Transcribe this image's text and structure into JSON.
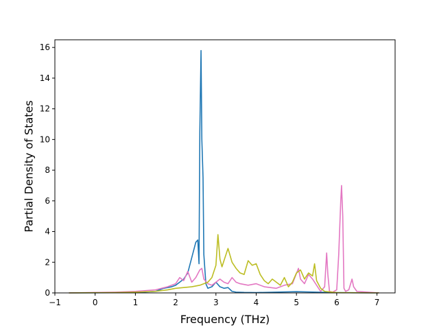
{
  "chart_data": {
    "type": "line",
    "title": "",
    "xlabel": "Frequency (THz)",
    "ylabel": "Partial Density of States",
    "xlim": [
      -1.0,
      7.45
    ],
    "ylim": [
      0,
      16.5
    ],
    "xticks": [
      -1,
      0,
      1,
      2,
      3,
      4,
      5,
      6,
      7
    ],
    "yticks": [
      0,
      2,
      4,
      6,
      8,
      10,
      12,
      14,
      16
    ],
    "grid": false,
    "legend": "none",
    "colors": [
      "#1f77b4",
      "#e377c2",
      "#bcbd22"
    ],
    "series": [
      {
        "color": "#1f77b4",
        "x": [
          -0.65,
          1.0,
          1.5,
          1.7,
          1.9,
          2.0,
          2.1,
          2.2,
          2.3,
          2.4,
          2.5,
          2.55,
          2.58,
          2.6,
          2.63,
          2.65,
          2.68,
          2.7,
          2.75,
          2.8,
          2.9,
          3.0,
          3.1,
          3.2,
          3.3,
          3.4,
          3.5,
          3.7,
          4.0,
          5.0,
          5.5,
          6.0,
          7.05
        ],
        "y": [
          0,
          0.02,
          0.1,
          0.3,
          0.4,
          0.5,
          0.7,
          0.9,
          1.3,
          2.3,
          3.3,
          3.45,
          1.9,
          10.5,
          15.8,
          10.0,
          7.5,
          2.5,
          0.6,
          0.3,
          0.4,
          0.7,
          0.4,
          0.3,
          0.35,
          0.1,
          0.05,
          0.03,
          0.02,
          0.08,
          0.05,
          0.02,
          0
        ]
      },
      {
        "color": "#e377c2",
        "x": [
          -0.65,
          0.5,
          1.0,
          1.5,
          1.8,
          2.0,
          2.1,
          2.2,
          2.3,
          2.4,
          2.5,
          2.6,
          2.65,
          2.7,
          2.8,
          2.9,
          3.0,
          3.1,
          3.2,
          3.3,
          3.4,
          3.5,
          3.6,
          3.8,
          4.0,
          4.2,
          4.5,
          4.7,
          4.9,
          5.05,
          5.1,
          5.2,
          5.3,
          5.4,
          5.5,
          5.6,
          5.7,
          5.75,
          5.78,
          5.82,
          5.9,
          6.0,
          6.05,
          6.1,
          6.12,
          6.15,
          6.18,
          6.22,
          6.3,
          6.38,
          6.42,
          6.5,
          7.05
        ],
        "y": [
          0,
          0.05,
          0.1,
          0.2,
          0.4,
          0.6,
          1.0,
          0.8,
          1.4,
          0.7,
          1.0,
          1.5,
          1.6,
          0.9,
          0.6,
          0.5,
          0.7,
          0.9,
          0.7,
          0.6,
          1.0,
          0.7,
          0.6,
          0.5,
          0.6,
          0.4,
          0.3,
          0.5,
          0.6,
          1.6,
          0.9,
          0.6,
          1.2,
          0.9,
          0.5,
          0.1,
          0.4,
          2.6,
          1.2,
          0.1,
          0.05,
          0.2,
          2.5,
          6.0,
          7.0,
          5.0,
          0.3,
          0.1,
          0.2,
          0.9,
          0.4,
          0.1,
          0
        ]
      },
      {
        "color": "#bcbd22",
        "x": [
          -0.65,
          0.5,
          1.0,
          1.5,
          1.8,
          2.0,
          2.2,
          2.4,
          2.6,
          2.8,
          2.9,
          3.0,
          3.05,
          3.1,
          3.15,
          3.2,
          3.3,
          3.4,
          3.5,
          3.6,
          3.7,
          3.8,
          3.9,
          4.0,
          4.1,
          4.2,
          4.3,
          4.4,
          4.5,
          4.6,
          4.7,
          4.8,
          4.9,
          5.0,
          5.1,
          5.2,
          5.3,
          5.4,
          5.45,
          5.5,
          5.6,
          5.7,
          6.0,
          7.05
        ],
        "y": [
          0,
          0.02,
          0.05,
          0.1,
          0.2,
          0.3,
          0.35,
          0.4,
          0.5,
          0.7,
          1.0,
          1.8,
          3.8,
          2.2,
          1.7,
          2.1,
          2.9,
          2.0,
          1.6,
          1.3,
          1.2,
          2.1,
          1.8,
          1.9,
          1.2,
          0.8,
          0.6,
          0.9,
          0.7,
          0.5,
          1.0,
          0.4,
          0.7,
          1.3,
          1.5,
          0.9,
          1.3,
          1.1,
          1.9,
          0.8,
          0.3,
          0.1,
          0.02,
          0
        ]
      }
    ]
  }
}
